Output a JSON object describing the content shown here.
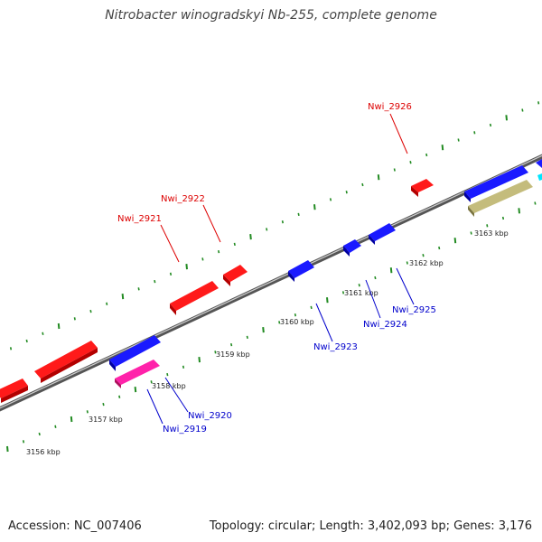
{
  "title": "Nitrobacter winogradskyi Nb-255, complete genome",
  "footer": {
    "accession": "Accession: NC_007406",
    "stats": "Topology: circular; Length: 3,402,093 bp; Genes: 3,176"
  },
  "colors": {
    "backbone": "#888888",
    "tick": "#228b22",
    "tick_label": "#222222",
    "forward_gene": "#ff0000",
    "reverse_gene": "#0000ff",
    "pink_gene": "#ff1493",
    "olive_gene": "#bdb76b",
    "cyan_gene": "#00ffff",
    "forward_label": "#dd0000",
    "reverse_label": "#0000cc"
  },
  "tick_labels": [
    "3156 kbp",
    "3157 kbp",
    "3158 kbp",
    "3159 kbp",
    "3160 kbp",
    "3161 kbp",
    "3162 kbp",
    "3163 kbp"
  ],
  "gene_labels": [
    {
      "text": "Nwi_2926",
      "strand": "forward"
    },
    {
      "text": "Nwi_2922",
      "strand": "forward"
    },
    {
      "text": "Nwi_2921",
      "strand": "forward"
    },
    {
      "text": "Nwi_2925",
      "strand": "reverse"
    },
    {
      "text": "Nwi_2924",
      "strand": "reverse"
    },
    {
      "text": "Nwi_2923",
      "strand": "reverse"
    },
    {
      "text": "Nwi_2920",
      "strand": "reverse"
    },
    {
      "text": "Nwi_2919",
      "strand": "reverse"
    }
  ],
  "features": [
    {
      "strand": "forward",
      "color": "forward_gene",
      "start_kbp": 3155.4,
      "end_kbp": 3155.7
    },
    {
      "strand": "forward",
      "color": "forward_gene",
      "start_kbp": 3156.4,
      "end_kbp": 3157.3
    },
    {
      "strand": "forward",
      "color": "forward_gene",
      "start_kbp": 3159.7,
      "end_kbp": 3160.3
    },
    {
      "strand": "forward",
      "color": "forward_gene",
      "start_kbp": 3160.5,
      "end_kbp": 3160.8
    },
    {
      "strand": "forward",
      "color": "forward_gene",
      "start_kbp": 3163.4,
      "end_kbp": 3163.6
    },
    {
      "strand": "reverse",
      "color": "reverse_gene",
      "start_kbp": 3158.0,
      "end_kbp": 3158.6
    },
    {
      "strand": "reverse",
      "color": "reverse_gene",
      "start_kbp": 3161.2,
      "end_kbp": 3161.5
    },
    {
      "strand": "reverse",
      "color": "reverse_gene",
      "start_kbp": 3162.4,
      "end_kbp": 3162.6
    },
    {
      "strand": "reverse",
      "color": "reverse_gene",
      "start_kbp": 3162.8,
      "end_kbp": 3163.1
    },
    {
      "strand": "reverse",
      "color": "reverse_gene",
      "start_kbp": 3164.2,
      "end_kbp": 3164.8
    },
    {
      "strand": "reverse",
      "color": "reverse_gene",
      "start_kbp": 3164.9,
      "end_kbp": 3165.1
    },
    {
      "strand": "reverse",
      "color": "pink_gene",
      "start_kbp": 3158.1,
      "end_kbp": 3158.6
    },
    {
      "strand": "reverse",
      "color": "olive_gene",
      "start_kbp": 3164.2,
      "end_kbp": 3164.8
    },
    {
      "strand": "reverse",
      "color": "cyan_gene",
      "start_kbp": 3164.9,
      "end_kbp": 3165.0
    }
  ]
}
